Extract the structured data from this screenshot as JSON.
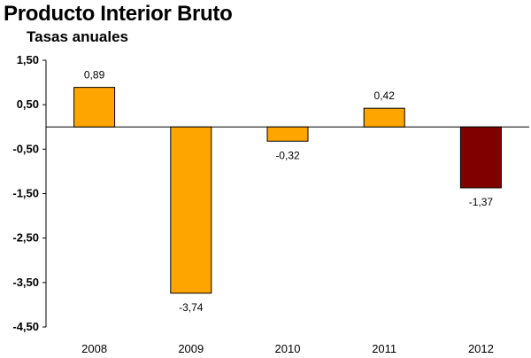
{
  "chart_data": {
    "type": "bar",
    "title": "Producto Interior Bruto",
    "subtitle": "Tasas anuales",
    "xlabel": "",
    "ylabel": "",
    "categories": [
      "2008",
      "2009",
      "2010",
      "2011",
      "2012"
    ],
    "values": [
      0.89,
      -3.74,
      -0.32,
      0.42,
      -1.37
    ],
    "data_labels": [
      "0,89",
      "-3,74",
      "-0,32",
      "0,42",
      "-1,37"
    ],
    "ylim": [
      -4.5,
      1.5
    ],
    "yticks": [
      1.5,
      0.5,
      -0.5,
      -1.5,
      -2.5,
      -3.5,
      -4.5
    ],
    "ytick_labels": [
      "1,50",
      "0,50",
      "-0,50",
      "-1,50",
      "-2,50",
      "-3,50",
      "-4,50"
    ],
    "grid": false,
    "legend": "none",
    "colors": {
      "bar_default": "#FFA500",
      "bar_highlight": "#800000",
      "bar_stroke": "#000000",
      "axis": "#000000"
    },
    "highlight_index": 4
  }
}
